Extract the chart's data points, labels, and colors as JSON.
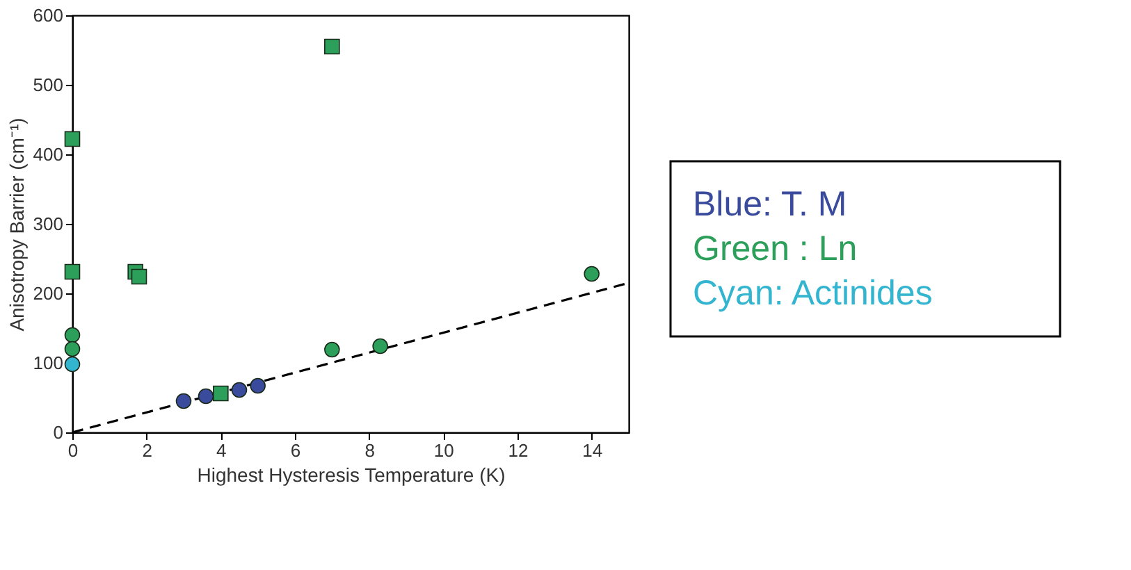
{
  "chart_data": {
    "type": "scatter",
    "xlabel": "Highest Hysteresis Temperature (K)",
    "ylabel": "Anisotropy Barrier (cm⁻¹)",
    "xlim": [
      0,
      15
    ],
    "xticks": [
      0,
      2,
      4,
      6,
      8,
      10,
      12,
      14
    ],
    "ylim": [
      0,
      600
    ],
    "yticks": [
      0,
      100,
      200,
      300,
      400,
      500,
      600
    ],
    "legend": "right",
    "grid": false,
    "series": [
      {
        "type": "line",
        "x": [
          0,
          15
        ],
        "values": [
          0,
          215
        ],
        "color": "#000000",
        "line_style": "dashed",
        "marker": "none"
      },
      {
        "name": "Blue: T. M",
        "color": "#3a4a9c",
        "marker": "circle",
        "x": [
          3,
          3.6,
          4.5,
          5
        ],
        "values": [
          45,
          52,
          61,
          67
        ]
      },
      {
        "name": "Green : Ln",
        "color": "#2ca05a",
        "marker": "circle",
        "x": [
          0,
          0,
          7,
          8.3,
          14
        ],
        "values": [
          140,
          120,
          119,
          124,
          228
        ]
      },
      {
        "color": "#2ca05a",
        "marker": "square",
        "x": [
          0,
          0,
          1.7,
          1.8,
          4,
          7
        ],
        "values": [
          422,
          231,
          231,
          224,
          56,
          555
        ]
      },
      {
        "name": "Cyan: Actinides",
        "color": "#33b5d0",
        "marker": "circle",
        "x": [
          0
        ],
        "values": [
          98
        ]
      }
    ]
  }
}
